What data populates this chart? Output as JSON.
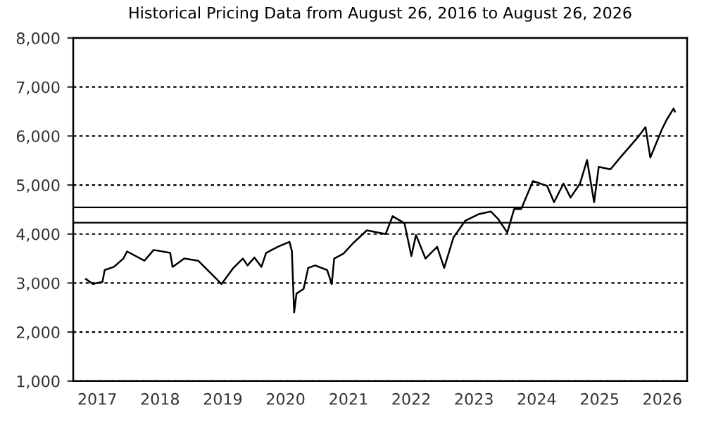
{
  "chart_data": {
    "type": "line",
    "title": "Historical Pricing Data from August 26, 2016 to August 26, 2026",
    "x": [
      "2016-10-27",
      "2016-12-07",
      "2017-01-31",
      "2017-02-13",
      "2017-04-08",
      "2017-06-02",
      "2017-06-23",
      "2017-10-02",
      "2017-11-25",
      "2018-03-01",
      "2018-03-15",
      "2018-05-22",
      "2018-08-11",
      "2018-11-01",
      "2018-12-25",
      "2019-03-04",
      "2019-04-28",
      "2019-05-25",
      "2019-07-04",
      "2019-08-14",
      "2019-09-10",
      "2019-11-17",
      "2020-01-24",
      "2020-02-07",
      "2020-02-20",
      "2020-03-05",
      "2020-04-15",
      "2020-05-12",
      "2020-06-22",
      "2020-08-30",
      "2020-09-26",
      "2020-10-10",
      "2020-12-03",
      "2021-01-27",
      "2021-04-18",
      "2021-08-05",
      "2021-09-15",
      "2021-11-23",
      "2022-01-02",
      "2022-01-29",
      "2022-03-25",
      "2022-06-01",
      "2022-07-12",
      "2022-09-04",
      "2022-11-11",
      "2023-02-01",
      "2023-04-09",
      "2023-05-20",
      "2023-07-14",
      "2023-08-23",
      "2023-10-03",
      "2023-12-10",
      "2024-03-01",
      "2024-04-11",
      "2024-06-05",
      "2024-07-16",
      "2024-09-09",
      "2024-10-20",
      "2024-11-30",
      "2024-12-27",
      "2025-03-05",
      "2025-05-12",
      "2025-08-15",
      "2025-09-25",
      "2025-10-23",
      "2025-12-29",
      "2026-01-25",
      "2026-03-07",
      "2026-03-15"
    ],
    "series": [
      {
        "color": "#000000",
        "values": [
          3080,
          2980,
          3025,
          3265,
          3330,
          3500,
          3645,
          3455,
          3675,
          3615,
          3330,
          3500,
          3455,
          3170,
          2980,
          3310,
          3500,
          3360,
          3520,
          3330,
          3615,
          3740,
          3840,
          3650,
          2400,
          2785,
          2880,
          3310,
          3360,
          3265,
          2980,
          3500,
          3600,
          3810,
          4075,
          4000,
          4365,
          4220,
          3550,
          3980,
          3500,
          3740,
          3310,
          3930,
          4270,
          4410,
          4460,
          4315,
          4030,
          4510,
          4510,
          5080,
          4985,
          4650,
          5030,
          4745,
          5030,
          5510,
          4650,
          5370,
          5320,
          5605,
          5990,
          6180,
          5560,
          6130,
          6325,
          6560,
          6500
        ]
      }
    ],
    "xlim": [
      "2016-08-14",
      "2026-05-25"
    ],
    "xticks": [
      {
        "value": "2017-01-01",
        "label": "2017"
      },
      {
        "value": "2018-01-01",
        "label": "2018"
      },
      {
        "value": "2019-01-01",
        "label": "2019"
      },
      {
        "value": "2020-01-01",
        "label": "2020"
      },
      {
        "value": "2021-01-01",
        "label": "2021"
      },
      {
        "value": "2022-01-01",
        "label": "2022"
      },
      {
        "value": "2023-01-01",
        "label": "2023"
      },
      {
        "value": "2024-01-01",
        "label": "2024"
      },
      {
        "value": "2025-01-01",
        "label": "2025"
      },
      {
        "value": "2026-01-01",
        "label": "2026"
      }
    ],
    "ylim": [
      1000,
      8000
    ],
    "yticks": [
      {
        "value": 1000,
        "label": "1,000"
      },
      {
        "value": 2000,
        "label": "2,000"
      },
      {
        "value": 3000,
        "label": "3,000"
      },
      {
        "value": 4000,
        "label": "4,000"
      },
      {
        "value": 5000,
        "label": "5,000"
      },
      {
        "value": 6000,
        "label": "6,000"
      },
      {
        "value": 7000,
        "label": "7,000"
      },
      {
        "value": 8000,
        "label": "8,000"
      }
    ],
    "grid": "y",
    "ref_lines": [
      {
        "axis": "y",
        "value": 4545,
        "color": "#000000",
        "line_style": "solid"
      },
      {
        "axis": "y",
        "value": 4230,
        "color": "#000000",
        "line_style": "solid"
      }
    ],
    "legend": false,
    "marker": "none",
    "line_style": "solid"
  }
}
